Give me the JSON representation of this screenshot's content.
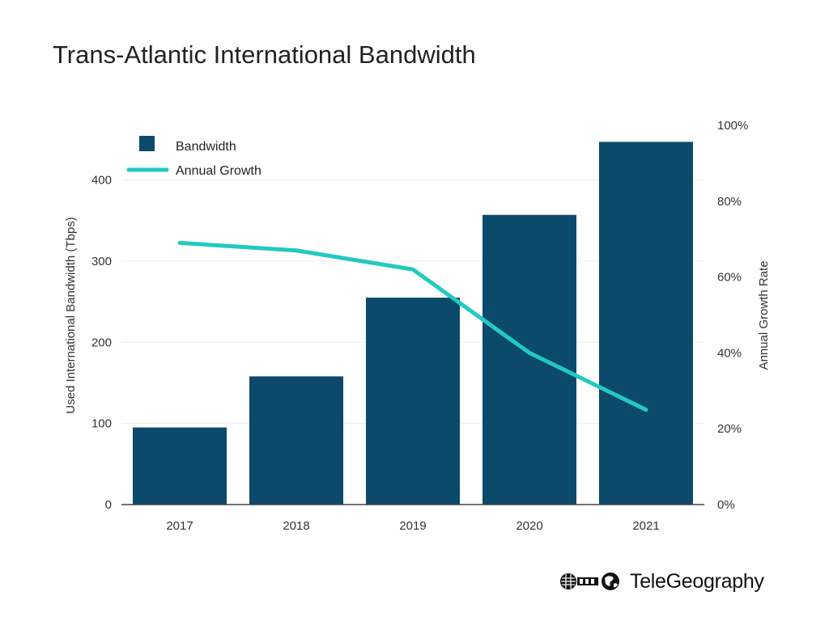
{
  "title": "Trans-Atlantic International Bandwidth",
  "brand": {
    "name": "TeleGeography",
    "logo_icon": "telegeography-logo-icon"
  },
  "colors": {
    "bar": "#0b4a6a",
    "line": "#22c9c2",
    "axis": "#444444",
    "grid": "#ececec"
  },
  "chart_data": {
    "type": "bar",
    "categories": [
      "2017",
      "2018",
      "2019",
      "2020",
      "2021"
    ],
    "series": [
      {
        "name": "Bandwidth",
        "type": "bar",
        "axis": "left",
        "values": [
          95,
          158,
          255,
          357,
          447
        ]
      },
      {
        "name": "Annual Growth",
        "type": "line",
        "axis": "right",
        "values": [
          0.69,
          0.67,
          0.62,
          0.4,
          0.25
        ]
      }
    ],
    "ylabel": "Used International Bandwidth (Tbps)",
    "ylabel_right": "Annual Growth Rate",
    "ylim": [
      0,
      450
    ],
    "yticks": [
      0,
      100,
      200,
      300,
      400
    ],
    "ylim_right": [
      0,
      1
    ],
    "yticks_right": [
      "0%",
      "20%",
      "40%",
      "60%",
      "80%",
      "100%"
    ],
    "grid": true,
    "legend": {
      "position": "top-left",
      "entries": [
        "Bandwidth",
        "Annual Growth"
      ]
    }
  }
}
